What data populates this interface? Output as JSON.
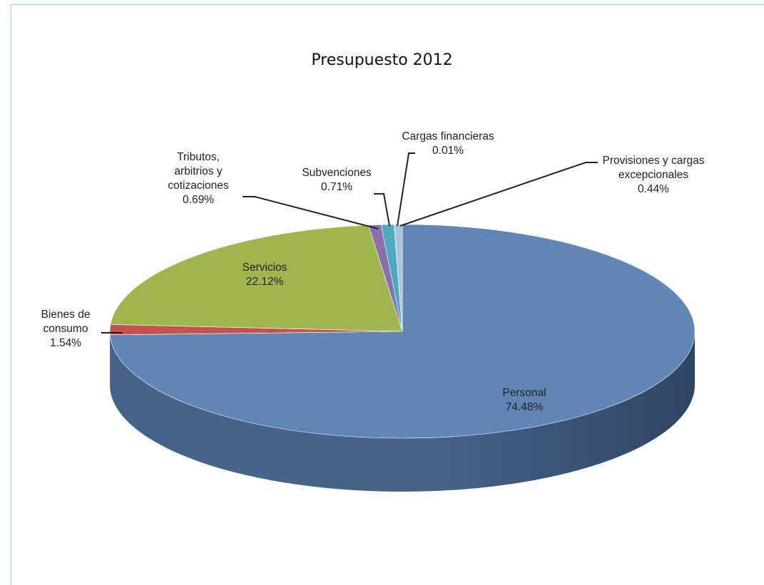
{
  "chart_data": {
    "type": "pie",
    "title": "Presupuesto 2012",
    "slices": [
      {
        "key": "personal",
        "label_lines": [
          "Personal",
          "74.48%"
        ],
        "value": 74.48,
        "color": "#5f86b4",
        "side": "#46638a"
      },
      {
        "key": "bienes",
        "label_lines": [
          "Bienes de",
          "consumo",
          "1.54%"
        ],
        "value": 1.54,
        "color": "#c4524f",
        "side": "#8e3a38"
      },
      {
        "key": "servicios",
        "label_lines": [
          "Servicios",
          "22.12%"
        ],
        "value": 22.12,
        "color": "#9fb64e",
        "side": "#73853a"
      },
      {
        "key": "tributos",
        "label_lines": [
          "Tributos,",
          "arbitrios y",
          "cotizaciones",
          "0.69%"
        ],
        "value": 0.69,
        "color": "#8a6fa8",
        "side": "#65527c"
      },
      {
        "key": "subvenciones",
        "label_lines": [
          "Subvenciones",
          "0.71%"
        ],
        "value": 0.71,
        "color": "#4fa7c0",
        "side": "#3a7b8d"
      },
      {
        "key": "cargas",
        "label_lines": [
          "Cargas financieras",
          "0.01%"
        ],
        "value": 0.01,
        "color": "#e5913f",
        "side": "#a96b2e"
      },
      {
        "key": "provisiones",
        "label_lines": [
          "Provisiones y cargas",
          "excepcionales",
          "0.44%"
        ],
        "value": 0.44,
        "color": "#a8c4e0",
        "side": "#7d93a8"
      }
    ]
  }
}
